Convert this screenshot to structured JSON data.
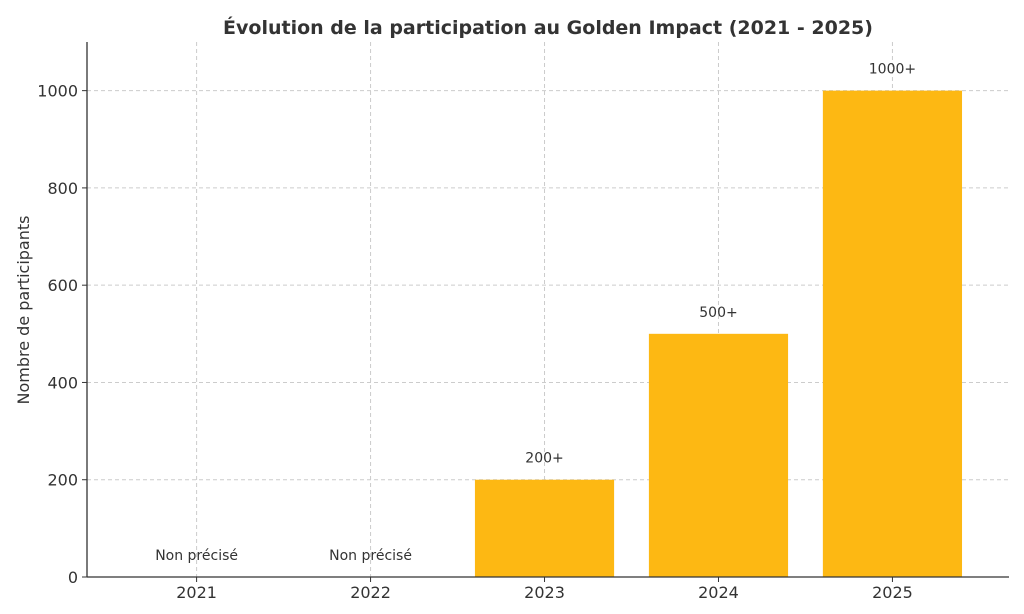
{
  "chart_data": {
    "type": "bar",
    "title": "Évolution de la participation au Golden Impact (2021 - 2025)",
    "xlabel": "",
    "ylabel": "Nombre de participants",
    "categories": [
      "2021",
      "2022",
      "2023",
      "2024",
      "2025"
    ],
    "values": [
      0,
      0,
      200,
      500,
      1000
    ],
    "data_labels": [
      "Non précisé",
      "Non précisé",
      "200+",
      "500+",
      "1000+"
    ],
    "ylim": [
      0,
      1100
    ],
    "yticks": [
      0,
      200,
      400,
      600,
      800,
      1000
    ],
    "grid": true,
    "colors": {
      "bar": "#FDB813"
    }
  }
}
